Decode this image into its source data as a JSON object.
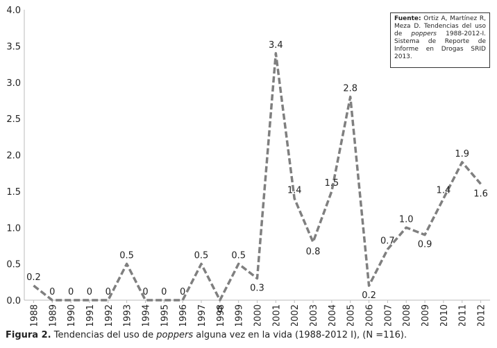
{
  "chart_data": {
    "type": "line",
    "categories": [
      "1988",
      "1989",
      "1990",
      "1991",
      "1992",
      "1993",
      "1994",
      "1995",
      "1996",
      "1997",
      "1998",
      "1999",
      "2000",
      "2001",
      "2002",
      "2003",
      "2004",
      "2005",
      "2006",
      "2007",
      "2008",
      "2009",
      "2010",
      "2011",
      "2012"
    ],
    "values": [
      0.2,
      0,
      0,
      0,
      0,
      0.5,
      0,
      0,
      0,
      0.5,
      0,
      0.5,
      0.3,
      3.4,
      1.4,
      0.8,
      1.5,
      2.8,
      0.2,
      0.7,
      1.0,
      0.9,
      1.4,
      1.9,
      1.6
    ],
    "data_labels": [
      "0.2",
      "0",
      "0",
      "0",
      "0",
      "0.5",
      "0",
      "0",
      "0",
      "0.5",
      "0",
      "0.5",
      "0.3",
      "3.4",
      "1.4",
      "0.8",
      "1.5",
      "2.8",
      "0.2",
      "0.7",
      "1.0",
      "0.9",
      "1.4",
      "1.9",
      "1.6"
    ],
    "yticks": [
      "0.0",
      "0.5",
      "1.0",
      "1.5",
      "2.0",
      "2.5",
      "3.0",
      "3.5",
      "4.0"
    ],
    "ylim": [
      0,
      4
    ],
    "grid": false,
    "line_style": "dashed",
    "line_color": "#7f7f7f"
  },
  "source": {
    "label": "Fuente:",
    "text_before_italic": " Ortiz A, Martínez R, Meza D. Tendencias del uso de ",
    "italic": "poppers",
    "text_after_italic": " 1988-2012-I. Sistema de Reporte de Informe en Drogas SRID 2013."
  },
  "caption": {
    "label": "Figura 2.",
    "text_before_italic": " Tendencias del uso de ",
    "italic": "poppers",
    "text_after_italic": " alguna vez en la vida (1988-2012 I), (N =116)."
  }
}
